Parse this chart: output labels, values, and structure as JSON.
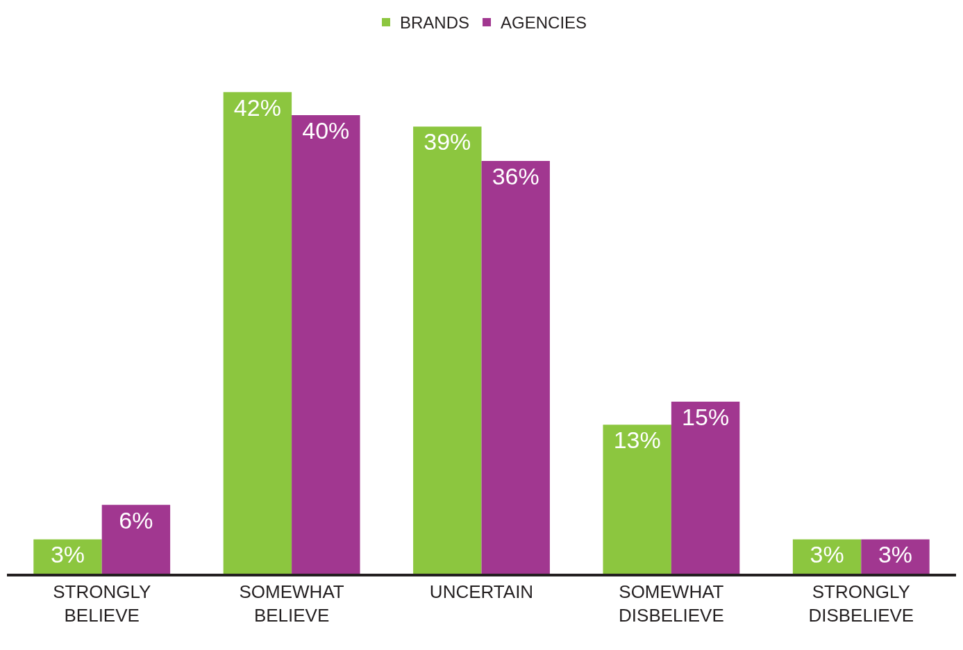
{
  "chart_data": {
    "type": "bar",
    "categories": [
      "STRONGLY BELIEVE",
      "SOMEWHAT BELIEVE",
      "UNCERTAIN",
      "SOMEWHAT DISBELIEVE",
      "STRONGLY DISBELIEVE"
    ],
    "series": [
      {
        "name": "BRANDS",
        "color": "#8cc63f",
        "values": [
          3,
          42,
          39,
          13,
          3
        ],
        "value_labels": [
          "3%",
          "42%",
          "39%",
          "13%",
          "3%"
        ]
      },
      {
        "name": "AGENCIES",
        "color": "#a13790",
        "values": [
          6,
          40,
          36,
          15,
          3
        ],
        "value_labels": [
          "6%",
          "40%",
          "36%",
          "15%",
          "3%"
        ]
      }
    ],
    "legend": "top"
  }
}
